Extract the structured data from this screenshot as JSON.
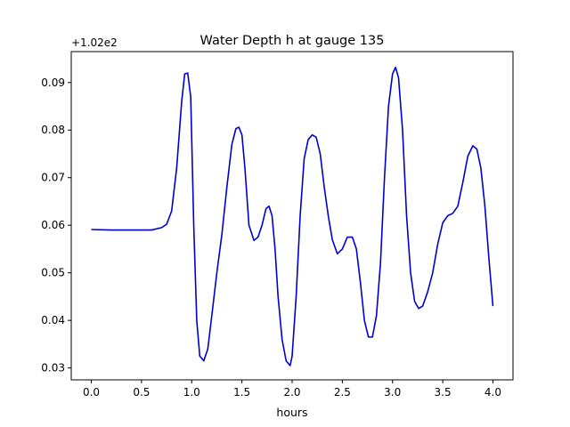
{
  "chart_data": {
    "type": "line",
    "title": "Water Depth h at gauge 135",
    "xlabel": "hours",
    "ylabel": "",
    "y_offset_label": "+1.02e2",
    "y_offset": 102,
    "xlim": [
      -0.2,
      4.2
    ],
    "ylim": [
      0.0275,
      0.0965
    ],
    "xticks": [
      0.0,
      0.5,
      1.0,
      1.5,
      2.0,
      2.5,
      3.0,
      3.5,
      4.0
    ],
    "xtick_labels": [
      "0.0",
      "0.5",
      "1.0",
      "1.5",
      "2.0",
      "2.5",
      "3.0",
      "3.5",
      "4.0"
    ],
    "yticks": [
      0.03,
      0.04,
      0.05,
      0.06,
      0.07,
      0.08,
      0.09
    ],
    "ytick_labels": [
      "0.03",
      "0.04",
      "0.05",
      "0.06",
      "0.07",
      "0.08",
      "0.09"
    ],
    "grid": false,
    "colors": {
      "line": "#0000cc",
      "axes": "#000000",
      "background": "#ffffff"
    },
    "series": [
      {
        "x": [
          0.0,
          0.2,
          0.4,
          0.6,
          0.7,
          0.75,
          0.8,
          0.85,
          0.9,
          0.93,
          0.96,
          0.99,
          1.02,
          1.05,
          1.08,
          1.12,
          1.16,
          1.2,
          1.25,
          1.3,
          1.35,
          1.4,
          1.44,
          1.47,
          1.5,
          1.53,
          1.57,
          1.62,
          1.66,
          1.7,
          1.74,
          1.77,
          1.8,
          1.83,
          1.86,
          1.9,
          1.94,
          1.98,
          2.0,
          2.04,
          2.08,
          2.12,
          2.16,
          2.2,
          2.24,
          2.28,
          2.32,
          2.36,
          2.4,
          2.45,
          2.5,
          2.55,
          2.6,
          2.64,
          2.68,
          2.72,
          2.76,
          2.8,
          2.84,
          2.88,
          2.92,
          2.96,
          3.0,
          3.03,
          3.06,
          3.1,
          3.14,
          3.18,
          3.22,
          3.26,
          3.3,
          3.35,
          3.4,
          3.45,
          3.5,
          3.55,
          3.6,
          3.65,
          3.7,
          3.75,
          3.8,
          3.84,
          3.88,
          3.92,
          3.96,
          4.0
        ],
        "y": [
          0.0591,
          0.059,
          0.059,
          0.059,
          0.0595,
          0.0602,
          0.063,
          0.072,
          0.086,
          0.0918,
          0.092,
          0.087,
          0.06,
          0.04,
          0.0325,
          0.0315,
          0.034,
          0.041,
          0.05,
          0.058,
          0.068,
          0.077,
          0.0803,
          0.0806,
          0.079,
          0.072,
          0.06,
          0.0568,
          0.0575,
          0.06,
          0.0635,
          0.064,
          0.062,
          0.055,
          0.045,
          0.036,
          0.0315,
          0.0305,
          0.0325,
          0.045,
          0.062,
          0.074,
          0.078,
          0.079,
          0.0785,
          0.075,
          0.068,
          0.062,
          0.057,
          0.054,
          0.055,
          0.0575,
          0.0575,
          0.055,
          0.048,
          0.04,
          0.0365,
          0.0365,
          0.041,
          0.052,
          0.07,
          0.085,
          0.0918,
          0.0932,
          0.091,
          0.08,
          0.062,
          0.05,
          0.044,
          0.0425,
          0.043,
          0.046,
          0.05,
          0.056,
          0.0605,
          0.062,
          0.0625,
          0.064,
          0.069,
          0.0745,
          0.0767,
          0.076,
          0.072,
          0.064,
          0.053,
          0.043
        ]
      }
    ]
  }
}
